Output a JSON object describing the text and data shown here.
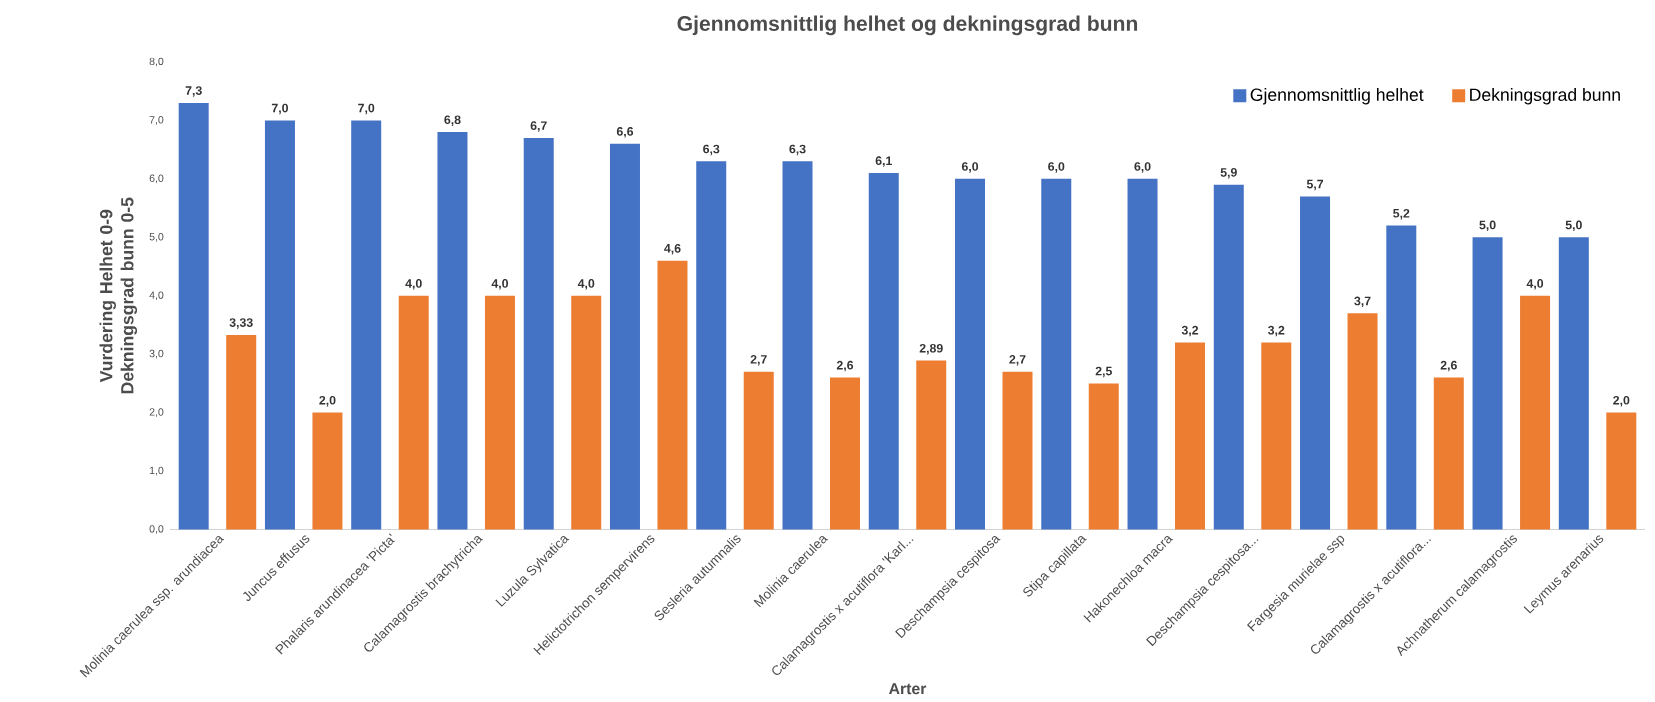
{
  "chart_data": {
    "type": "bar",
    "title": "Gjennomsnittlig helhet og dekningsgrad bunn",
    "xlabel": "Arter",
    "ylabel": "Vurdering Helhet 0-9 Dekningsgrad bunn 0-5",
    "categories": [
      "Molinia caerulea ssp. arundiacea",
      "Juncus effusus",
      "Phalaris arundinacea 'Picta'",
      "Calamagrostis brachytricha",
      "Luzula Sylvatica",
      "Helictotrichon sempervirens",
      "Sesleria autumnalis",
      "Molinia caerulea",
      "Calamagrostis x acutiflora 'Karl...",
      "Deschampsia cespitosa",
      "Stipa capillata",
      "Hakonechloa macra",
      "Deschampsia cespitosa...",
      "Fargesia murielae ssp",
      "Calamagrostis x acutiflora...",
      "Achnatherum calamagrostis",
      "Leymus arenarius"
    ],
    "series": [
      {
        "name": "Gjennomsnittlig helhet",
        "color": "#4472c4",
        "values": [
          7.3,
          7.0,
          7.0,
          6.8,
          6.7,
          6.6,
          6.3,
          6.3,
          6.1,
          6.0,
          6.0,
          6.0,
          5.9,
          5.7,
          5.2,
          5.0,
          5.0
        ],
        "value_labels": [
          "7,3",
          "7,0",
          "7,0",
          "6,8",
          "6,7",
          "6,6",
          "6,3",
          "6,3",
          "6,1",
          "6,0",
          "6,0",
          "6,0",
          "5,9",
          "5,7",
          "5,2",
          "5,0",
          "5,0"
        ]
      },
      {
        "name": "Dekningsgrad bunn",
        "color": "#ed7d31",
        "values": [
          3.33,
          2.0,
          4.0,
          4.0,
          4.0,
          4.6,
          2.7,
          2.6,
          2.89,
          2.7,
          2.5,
          3.2,
          3.2,
          3.7,
          2.6,
          4.0,
          2.0
        ],
        "value_labels": [
          "3,33",
          "2,0",
          "4,0",
          "4,0",
          "4,0",
          "4,6",
          "2,7",
          "2,6",
          "2,89",
          "2,7",
          "2,5",
          "3,2",
          "3,2",
          "3,7",
          "2,6",
          "4,0",
          "2,0"
        ]
      }
    ],
    "ylim": [
      0,
      8
    ],
    "yticks": [
      {
        "value": 0,
        "label": "0,0"
      },
      {
        "value": 1,
        "label": "1,0"
      },
      {
        "value": 2,
        "label": "2,0"
      },
      {
        "value": 3,
        "label": "3,0"
      },
      {
        "value": 4,
        "label": "4,0"
      },
      {
        "value": 5,
        "label": "5,0"
      },
      {
        "value": 6,
        "label": "6,0"
      },
      {
        "value": 7,
        "label": "7,0"
      },
      {
        "value": 8,
        "label": "8,0"
      }
    ],
    "legend": "top right"
  }
}
